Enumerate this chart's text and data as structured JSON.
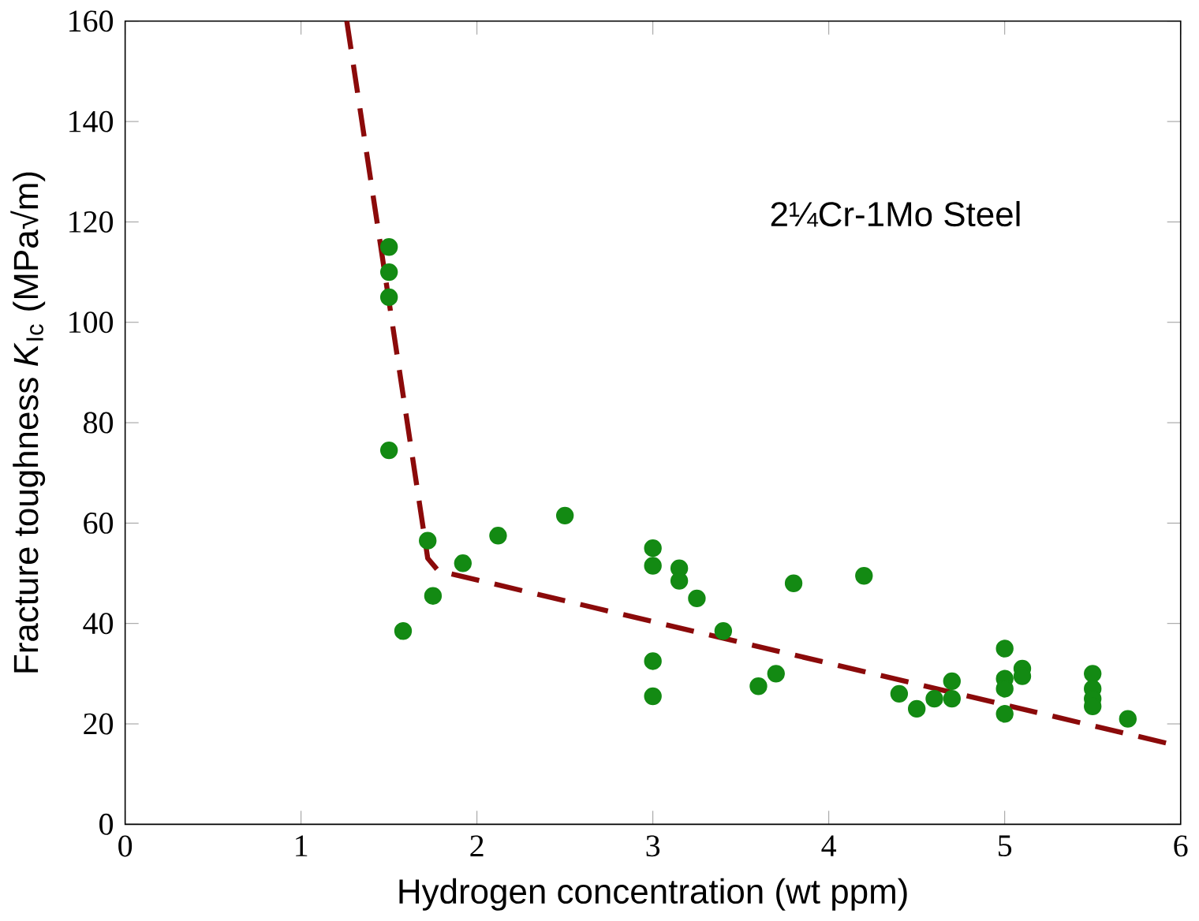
{
  "chart_data": {
    "type": "scatter",
    "xlabel": "Hydrogen concentration (wt ppm)",
    "ylabel": "Fracture toughness *K*$_{Ic}$  (MPa√m)",
    "annotations": [
      "2¼Cr-1Mo Steel"
    ],
    "xlim": [
      0,
      6
    ],
    "ylim": [
      0,
      160
    ],
    "xticks": [
      0,
      1,
      2,
      3,
      4,
      5,
      6
    ],
    "yticks": [
      0,
      20,
      40,
      60,
      80,
      100,
      120,
      140,
      160
    ],
    "grid": false,
    "series": [
      {
        "color": "#138a13",
        "marker": "circle",
        "x": [
          1.5,
          1.5,
          1.5,
          1.5,
          1.58,
          1.72,
          1.75,
          1.92,
          2.12,
          2.5,
          3.0,
          3.0,
          3.0,
          3.0,
          3.15,
          3.15,
          3.25,
          3.4,
          3.6,
          3.7,
          3.8,
          4.2,
          4.4,
          4.5,
          4.6,
          4.7,
          4.7,
          5.0,
          5.0,
          5.0,
          5.0,
          5.1,
          5.1,
          5.5,
          5.5,
          5.5,
          5.5,
          5.7
        ],
        "values": [
          115,
          110,
          105,
          74.5,
          38.5,
          56.5,
          45.5,
          52,
          57.5,
          61.5,
          55,
          51.5,
          32.5,
          25.5,
          51,
          48.5,
          45,
          38.5,
          27.5,
          30,
          48,
          49.5,
          26,
          23,
          25,
          25,
          28.5,
          35,
          29,
          27,
          22,
          31,
          29.5,
          30,
          27,
          25,
          23.5,
          21
        ]
      },
      {
        "type": "line",
        "color": "#8b0a0a",
        "line_style": "dashed",
        "marker": "none",
        "x": [
          1.26,
          1.72,
          1.78,
          6
        ],
        "values": [
          160,
          53,
          50.5,
          15.5
        ]
      }
    ]
  }
}
